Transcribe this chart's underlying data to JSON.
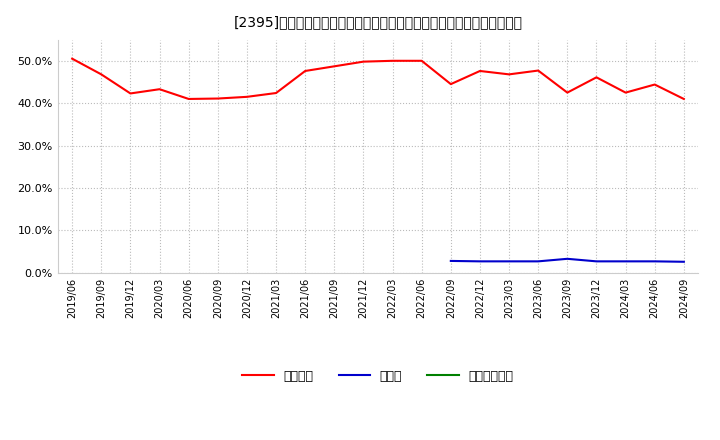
{
  "title": "[2395]　自己資本、のれん、繰延税金資産の総資産に対する比率の推移",
  "x_labels": [
    "2019/06",
    "2019/09",
    "2019/12",
    "2020/03",
    "2020/06",
    "2020/09",
    "2020/12",
    "2021/03",
    "2021/06",
    "2021/09",
    "2021/12",
    "2022/03",
    "2022/06",
    "2022/09",
    "2022/12",
    "2023/03",
    "2023/06",
    "2023/09",
    "2023/12",
    "2024/03",
    "2024/06",
    "2024/09"
  ],
  "equity": [
    0.505,
    0.468,
    0.423,
    0.433,
    0.41,
    0.411,
    0.415,
    0.424,
    0.476,
    0.487,
    0.498,
    0.5,
    0.5,
    0.445,
    0.476,
    0.468,
    0.477,
    0.425,
    0.461,
    0.425,
    0.444,
    0.41
  ],
  "noren": [
    null,
    null,
    null,
    null,
    null,
    null,
    null,
    null,
    null,
    null,
    null,
    null,
    null,
    0.028,
    0.027,
    0.027,
    0.027,
    0.033,
    0.027,
    0.027,
    0.027,
    0.026
  ],
  "deferred_tax": [
    null,
    null,
    null,
    null,
    null,
    null,
    null,
    null,
    null,
    null,
    null,
    null,
    null,
    null,
    null,
    null,
    null,
    null,
    null,
    null,
    null,
    null
  ],
  "equity_color": "#ff0000",
  "noren_color": "#0000cc",
  "deferred_tax_color": "#008000",
  "bg_color": "#ffffff",
  "plot_bg_color": "#ffffff",
  "grid_color": "#bbbbbb",
  "ylim": [
    0.0,
    0.55
  ],
  "yticks": [
    0.0,
    0.1,
    0.2,
    0.3,
    0.4,
    0.5
  ],
  "legend_labels": [
    "自己資本",
    "のれん",
    "繰延税金資産"
  ]
}
